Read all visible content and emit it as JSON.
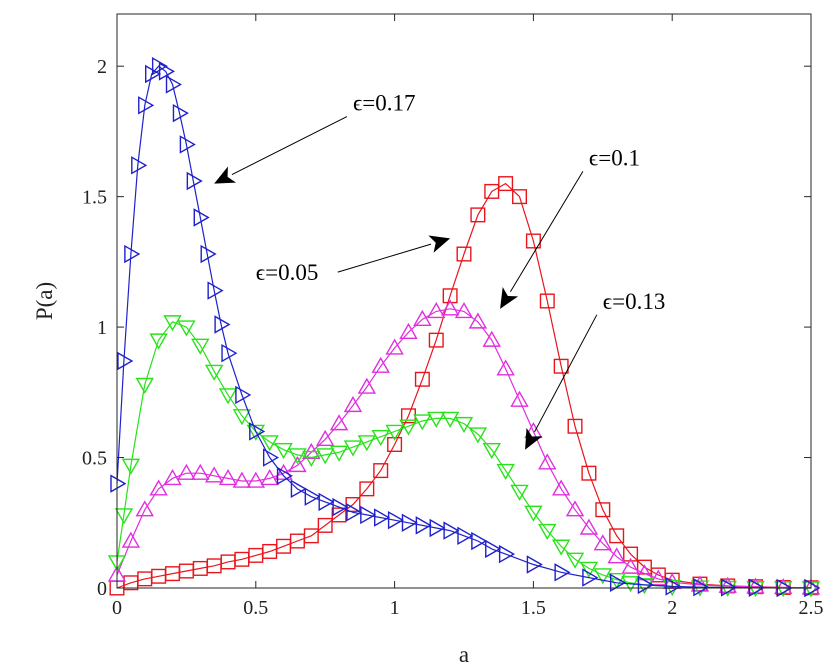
{
  "chart_data": {
    "type": "line",
    "xlabel": "a",
    "ylabel": "P(a)",
    "xlim": [
      0,
      2.5
    ],
    "ylim": [
      0,
      2.2
    ],
    "xticks": [
      "0",
      "0.5",
      "1",
      "1.5",
      "2",
      "2.5"
    ],
    "yticks": [
      "0",
      "0.5",
      "1",
      "1.5",
      "2"
    ],
    "grid": false,
    "series": [
      {
        "name": "ϵ=0.05",
        "color": "#e8161c",
        "marker": "square",
        "x": [
          0.0,
          0.05,
          0.1,
          0.15,
          0.2,
          0.25,
          0.3,
          0.35,
          0.4,
          0.45,
          0.5,
          0.55,
          0.6,
          0.65,
          0.7,
          0.75,
          0.8,
          0.85,
          0.9,
          0.95,
          1.0,
          1.05,
          1.1,
          1.15,
          1.2,
          1.25,
          1.3,
          1.35,
          1.4,
          1.45,
          1.5,
          1.55,
          1.6,
          1.65,
          1.7,
          1.75,
          1.8,
          1.85,
          1.9,
          1.95,
          2.0,
          2.1,
          2.2,
          2.3,
          2.4,
          2.5
        ],
        "y": [
          0.0,
          0.02,
          0.035,
          0.045,
          0.055,
          0.065,
          0.075,
          0.085,
          0.1,
          0.11,
          0.125,
          0.14,
          0.16,
          0.18,
          0.2,
          0.24,
          0.28,
          0.32,
          0.38,
          0.45,
          0.55,
          0.66,
          0.8,
          0.95,
          1.12,
          1.28,
          1.43,
          1.52,
          1.55,
          1.5,
          1.33,
          1.1,
          0.85,
          0.62,
          0.44,
          0.3,
          0.2,
          0.13,
          0.08,
          0.05,
          0.03,
          0.015,
          0.008,
          0.005,
          0.002,
          0.001
        ]
      },
      {
        "name": "ϵ=0.1",
        "color": "#e12ee0",
        "marker": "triangle-up",
        "x": [
          0.0,
          0.05,
          0.1,
          0.15,
          0.2,
          0.25,
          0.3,
          0.35,
          0.4,
          0.45,
          0.5,
          0.55,
          0.6,
          0.65,
          0.7,
          0.75,
          0.8,
          0.85,
          0.9,
          0.95,
          1.0,
          1.05,
          1.1,
          1.15,
          1.2,
          1.25,
          1.3,
          1.35,
          1.4,
          1.45,
          1.5,
          1.55,
          1.6,
          1.65,
          1.7,
          1.75,
          1.8,
          1.85,
          1.9,
          1.95,
          2.0,
          2.1,
          2.2,
          2.3,
          2.4,
          2.5
        ],
        "y": [
          0.05,
          0.18,
          0.3,
          0.38,
          0.42,
          0.44,
          0.44,
          0.43,
          0.42,
          0.41,
          0.41,
          0.42,
          0.44,
          0.47,
          0.52,
          0.57,
          0.63,
          0.7,
          0.77,
          0.85,
          0.92,
          0.98,
          1.03,
          1.06,
          1.07,
          1.06,
          1.02,
          0.95,
          0.84,
          0.72,
          0.6,
          0.48,
          0.38,
          0.3,
          0.23,
          0.17,
          0.12,
          0.08,
          0.055,
          0.035,
          0.022,
          0.012,
          0.007,
          0.004,
          0.002,
          0.001
        ]
      },
      {
        "name": "ϵ=0.13",
        "color": "#27e318",
        "marker": "triangle-down",
        "x": [
          0.0,
          0.025,
          0.05,
          0.1,
          0.15,
          0.2,
          0.25,
          0.3,
          0.35,
          0.4,
          0.45,
          0.5,
          0.55,
          0.6,
          0.65,
          0.7,
          0.75,
          0.8,
          0.85,
          0.9,
          0.95,
          1.0,
          1.05,
          1.1,
          1.15,
          1.2,
          1.25,
          1.3,
          1.35,
          1.4,
          1.45,
          1.5,
          1.55,
          1.6,
          1.65,
          1.7,
          1.75,
          1.8,
          1.85,
          1.9,
          2.0,
          2.1,
          2.2,
          2.3,
          2.4,
          2.5
        ],
        "y": [
          0.1,
          0.28,
          0.47,
          0.78,
          0.95,
          1.02,
          1.0,
          0.93,
          0.83,
          0.74,
          0.66,
          0.6,
          0.56,
          0.53,
          0.51,
          0.5,
          0.51,
          0.52,
          0.54,
          0.56,
          0.58,
          0.6,
          0.62,
          0.64,
          0.65,
          0.65,
          0.63,
          0.59,
          0.53,
          0.45,
          0.37,
          0.29,
          0.22,
          0.16,
          0.11,
          0.075,
          0.05,
          0.032,
          0.02,
          0.012,
          0.005,
          0.003,
          0.002,
          0.001,
          0.001,
          0.0
        ]
      },
      {
        "name": "ϵ=0.17",
        "color": "#1f21cc",
        "marker": "triangle-right",
        "x": [
          0.0,
          0.025,
          0.05,
          0.075,
          0.1,
          0.125,
          0.15,
          0.175,
          0.2,
          0.225,
          0.25,
          0.275,
          0.3,
          0.325,
          0.35,
          0.375,
          0.4,
          0.45,
          0.5,
          0.55,
          0.6,
          0.65,
          0.7,
          0.75,
          0.8,
          0.85,
          0.9,
          0.95,
          1.0,
          1.05,
          1.1,
          1.15,
          1.2,
          1.25,
          1.3,
          1.35,
          1.4,
          1.5,
          1.6,
          1.7,
          1.8,
          1.9,
          2.0,
          2.1,
          2.2,
          2.3,
          2.4,
          2.5
        ],
        "y": [
          0.4,
          0.87,
          1.28,
          1.62,
          1.85,
          1.97,
          2.0,
          1.98,
          1.93,
          1.82,
          1.7,
          1.56,
          1.42,
          1.28,
          1.14,
          1.01,
          0.9,
          0.74,
          0.6,
          0.5,
          0.43,
          0.38,
          0.35,
          0.33,
          0.31,
          0.29,
          0.28,
          0.27,
          0.26,
          0.25,
          0.24,
          0.23,
          0.22,
          0.2,
          0.18,
          0.15,
          0.13,
          0.09,
          0.06,
          0.04,
          0.02,
          0.012,
          0.006,
          0.003,
          0.002,
          0.001,
          0.0,
          0.0
        ]
      }
    ],
    "annotations": [
      {
        "text": "ϵ=0.17",
        "series": "ϵ=0.17",
        "target": [
          0.35,
          1.55
        ],
        "label_pos": [
          0.85,
          1.83
        ]
      },
      {
        "text": "ϵ=0.1",
        "series": "ϵ=0.1",
        "target": [
          1.38,
          1.07
        ],
        "label_pos": [
          1.7,
          1.62
        ]
      },
      {
        "text": "ϵ=0.05",
        "series": "ϵ=0.05",
        "target": [
          1.2,
          1.34
        ],
        "label_pos": [
          0.5,
          1.18
        ]
      },
      {
        "text": "ϵ=0.13",
        "series": "ϵ=0.13",
        "target": [
          1.47,
          0.53
        ],
        "label_pos": [
          1.75,
          1.07
        ]
      }
    ]
  }
}
